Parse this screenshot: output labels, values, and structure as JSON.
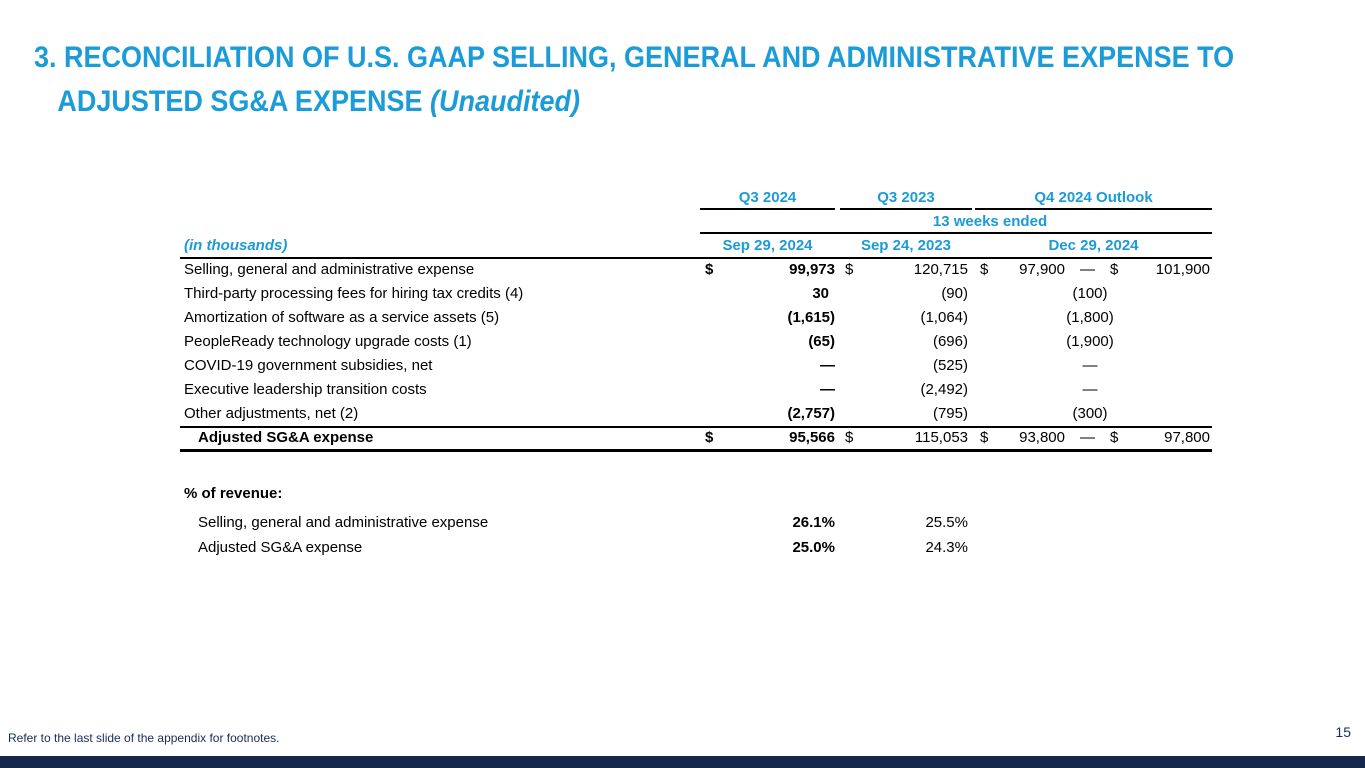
{
  "title": {
    "line1": "3. RECONCILIATION OF U.S. GAAP SELLING, GENERAL AND ADMINISTRATIVE EXPENSE TO",
    "line2": "ADJUSTED SG&A EXPENSE ",
    "line2_italic": "(Unaudited)"
  },
  "headers": {
    "col1": "Q3 2024",
    "col2": "Q3 2023",
    "col3": "Q4 2024 Outlook",
    "period": "13 weeks ended",
    "units": "(in thousands)",
    "date1": "Sep 29, 2024",
    "date2": "Sep 24, 2023",
    "date3": "Dec 29, 2024"
  },
  "rows": [
    {
      "label": "Selling, general and administrative expense",
      "c1": "99,973",
      "c2": "120,715",
      "c3a": "97,900",
      "c3b": "101,900",
      "cur": "$",
      "dash": "—"
    },
    {
      "label": "Third-party processing fees for hiring tax credits (4)",
      "c1": "30",
      "c2": "(90)",
      "c3": "(100)"
    },
    {
      "label": "Amortization of software as a service assets (5)",
      "c1": "(1,615)",
      "c2": "(1,064)",
      "c3": "(1,800)"
    },
    {
      "label": "PeopleReady technology upgrade costs (1)",
      "c1": "(65)",
      "c2": "(696)",
      "c3": "(1,900)"
    },
    {
      "label": "COVID-19 government subsidies, net",
      "c1": "—",
      "c2": "(525)",
      "c3": "—"
    },
    {
      "label": "Executive leadership transition costs",
      "c1": "—",
      "c2": "(2,492)",
      "c3": "—"
    },
    {
      "label": "Other adjustments, net (2)",
      "c1": "(2,757)",
      "c2": "(795)",
      "c3": "(300)"
    },
    {
      "label": "Adjusted SG&A expense",
      "c1": "95,566",
      "c2": "115,053",
      "c3a": "93,800",
      "c3b": "97,800",
      "cur": "$",
      "dash": "—"
    }
  ],
  "pct": {
    "heading": "% of revenue:",
    "rows": [
      {
        "label": "Selling, general and administrative expense",
        "c1": "26.1%",
        "c2": "25.5%"
      },
      {
        "label": "Adjusted SG&A expense",
        "c1": "25.0%",
        "c2": "24.3%"
      }
    ]
  },
  "footnote": "Refer to the last slide of the appendix for footnotes.",
  "page_number": "15",
  "colors": {
    "accent": "#1b9bd7",
    "footer_bar": "#14284b"
  }
}
